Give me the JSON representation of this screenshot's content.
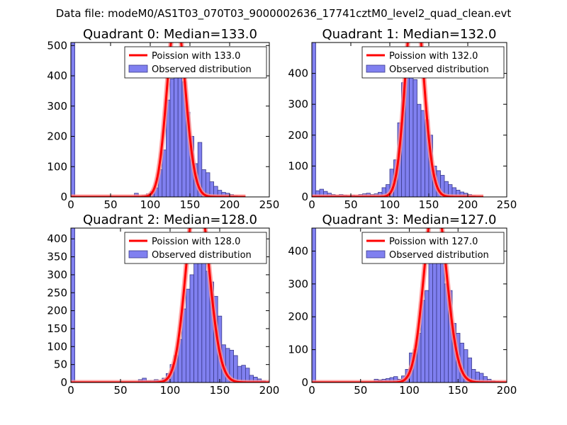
{
  "suptitle": "Data file: modeM0/AS1T03_070T03_9000002636_17741cztM0_level2_quad_clean.evt",
  "colors": {
    "bar_fill": "#8080f0",
    "bar_edge": "#3a3a8a",
    "curve": "#ff0000",
    "curve_overlap": "#ff9090"
  },
  "chart_data": [
    {
      "type": "bar",
      "title": "Quadrant 0: Median=133.0",
      "median": 133.0,
      "xlim": [
        0,
        250
      ],
      "ylim": [
        0,
        510
      ],
      "xticks": [
        0,
        50,
        100,
        150,
        200,
        250
      ],
      "yticks": [
        0,
        100,
        200,
        300,
        400,
        500
      ],
      "bin_width": 5,
      "bins": [
        0,
        75,
        80,
        85,
        90,
        95,
        100,
        105,
        110,
        115,
        120,
        125,
        130,
        135,
        140,
        145,
        150,
        155,
        160,
        165,
        170,
        175,
        180,
        185,
        190,
        195,
        200,
        205,
        210
      ],
      "counts": [
        515,
        0,
        12,
        3,
        5,
        10,
        18,
        30,
        90,
        155,
        320,
        390,
        465,
        480,
        380,
        280,
        200,
        110,
        180,
        90,
        80,
        50,
        35,
        22,
        15,
        12,
        8,
        4,
        2
      ],
      "legend": [
        "Poission with 133.0",
        "Observed distribution"
      ]
    },
    {
      "type": "bar",
      "title": "Quadrant 1: Median=132.0",
      "median": 132.0,
      "xlim": [
        0,
        250
      ],
      "ylim": [
        0,
        500
      ],
      "xticks": [
        0,
        50,
        100,
        150,
        200,
        250
      ],
      "yticks": [
        0,
        100,
        200,
        300,
        400
      ],
      "bin_width": 5,
      "bins": [
        0,
        5,
        10,
        15,
        20,
        25,
        30,
        35,
        40,
        45,
        50,
        55,
        60,
        65,
        70,
        75,
        80,
        85,
        90,
        95,
        100,
        105,
        110,
        115,
        120,
        125,
        130,
        135,
        140,
        145,
        150,
        155,
        160,
        165,
        170,
        175,
        180,
        185,
        190,
        195,
        200,
        205,
        210
      ],
      "counts": [
        500,
        20,
        25,
        18,
        12,
        8,
        5,
        8,
        6,
        4,
        6,
        4,
        8,
        10,
        12,
        8,
        10,
        15,
        30,
        40,
        90,
        120,
        240,
        370,
        450,
        450,
        380,
        300,
        280,
        250,
        200,
        100,
        85,
        70,
        50,
        40,
        30,
        22,
        16,
        12,
        8,
        4,
        2
      ],
      "legend": [
        "Poission with 132.0",
        "Observed distribution"
      ]
    },
    {
      "type": "bar",
      "title": "Quadrant 2: Median=128.0",
      "median": 128.0,
      "xlim": [
        0,
        200
      ],
      "ylim": [
        0,
        430
      ],
      "xticks": [
        0,
        50,
        100,
        150,
        200
      ],
      "yticks": [
        0,
        50,
        100,
        150,
        200,
        250,
        300,
        350,
        400
      ],
      "bin_width": 4,
      "bins": [
        0,
        68,
        72,
        76,
        80,
        84,
        88,
        92,
        96,
        100,
        104,
        108,
        112,
        116,
        120,
        124,
        128,
        132,
        136,
        140,
        144,
        148,
        152,
        156,
        160,
        164,
        168,
        172,
        176,
        180,
        184,
        188,
        192
      ],
      "counts": [
        430,
        8,
        12,
        5,
        6,
        8,
        5,
        12,
        25,
        50,
        75,
        120,
        205,
        260,
        300,
        390,
        405,
        385,
        310,
        280,
        240,
        185,
        105,
        95,
        90,
        75,
        45,
        48,
        40,
        20,
        15,
        10,
        5
      ],
      "legend": [
        "Poission with 128.0",
        "Observed distribution"
      ]
    },
    {
      "type": "bar",
      "title": "Quadrant 3: Median=127.0",
      "median": 127.0,
      "xlim": [
        0,
        200
      ],
      "ylim": [
        0,
        470
      ],
      "xticks": [
        0,
        50,
        100,
        150,
        200
      ],
      "yticks": [
        0,
        100,
        200,
        300,
        400
      ],
      "bin_width": 4,
      "bins": [
        0,
        64,
        68,
        72,
        76,
        80,
        84,
        88,
        92,
        96,
        100,
        104,
        108,
        112,
        116,
        120,
        124,
        128,
        132,
        136,
        140,
        144,
        148,
        152,
        156,
        160,
        164,
        168,
        172,
        176,
        180,
        184,
        188
      ],
      "counts": [
        470,
        10,
        8,
        10,
        12,
        15,
        18,
        10,
        20,
        40,
        90,
        100,
        150,
        250,
        280,
        390,
        440,
        430,
        380,
        300,
        280,
        180,
        150,
        120,
        100,
        75,
        40,
        32,
        28,
        18,
        10,
        5,
        3
      ],
      "legend": [
        "Poission with 127.0",
        "Observed distribution"
      ]
    }
  ]
}
